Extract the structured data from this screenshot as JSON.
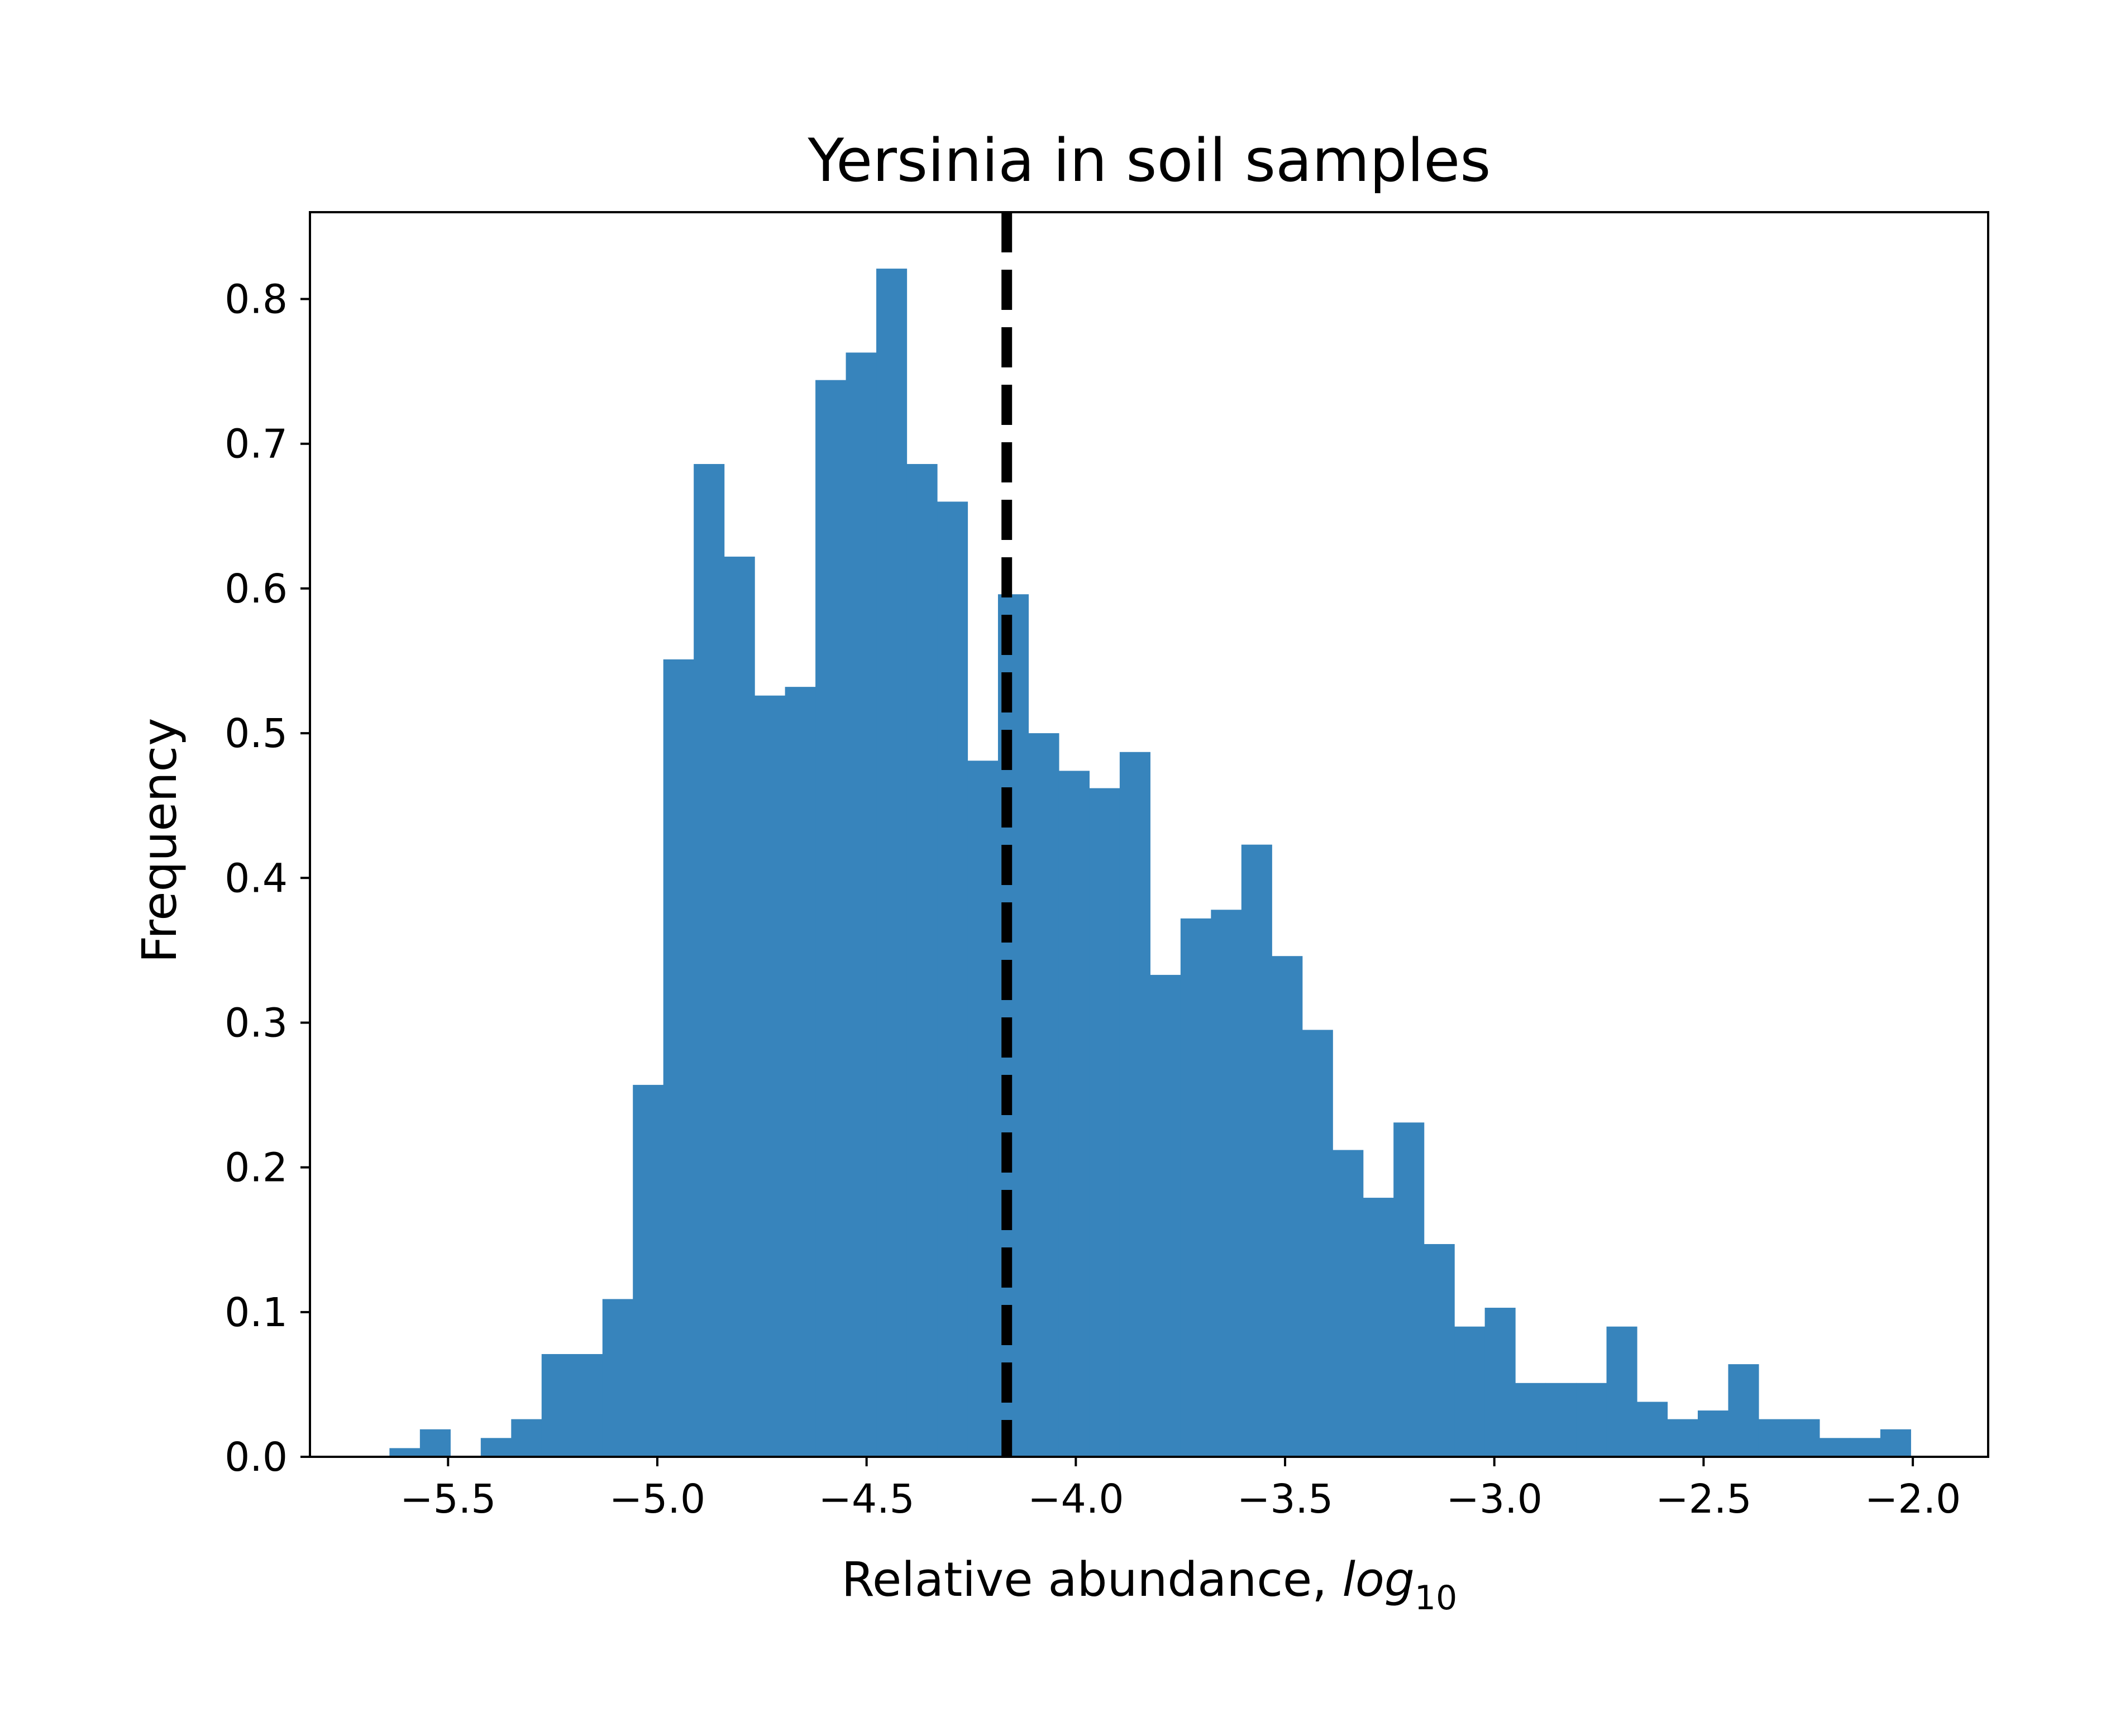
{
  "chart_data": {
    "type": "bar",
    "title": "Yersinia in soil samples",
    "xlabel": "Relative abundance, ",
    "xlabel_math": "log",
    "xlabel_subscript": "10",
    "ylabel": "Frequency",
    "xlim": [
      -5.83,
      -1.82
    ],
    "ylim": [
      0,
      0.86
    ],
    "xticks": [
      -5.5,
      -5.0,
      -4.5,
      -4.0,
      -3.5,
      -3.0,
      -2.5,
      -2.0
    ],
    "xtick_labels": [
      "−5.5",
      "−5.0",
      "−4.5",
      "−4.0",
      "−3.5",
      "−3.0",
      "−2.5",
      "−2.0"
    ],
    "yticks": [
      0.0,
      0.1,
      0.2,
      0.3,
      0.4,
      0.5,
      0.6,
      0.7,
      0.8
    ],
    "ytick_labels": [
      "0.0",
      "0.1",
      "0.2",
      "0.3",
      "0.4",
      "0.5",
      "0.6",
      "0.7",
      "0.8"
    ],
    "bin_start": -5.64,
    "bin_width": 0.0727,
    "values": [
      0.006,
      0.019,
      0.0,
      0.013,
      0.026,
      0.071,
      0.071,
      0.109,
      0.257,
      0.551,
      0.686,
      0.622,
      0.526,
      0.532,
      0.744,
      0.763,
      0.821,
      0.686,
      0.66,
      0.481,
      0.596,
      0.5,
      0.474,
      0.462,
      0.487,
      0.333,
      0.372,
      0.378,
      0.423,
      0.346,
      0.295,
      0.212,
      0.179,
      0.231,
      0.147,
      0.09,
      0.103,
      0.051,
      0.051,
      0.051,
      0.09,
      0.038,
      0.026,
      0.032,
      0.064,
      0.026,
      0.026,
      0.013,
      0.013,
      0.019
    ],
    "reference_line": {
      "x": -4.165,
      "style": "dashed",
      "color": "#000000"
    },
    "bar_color": "#3784bc",
    "grid": false,
    "legend": "none"
  }
}
